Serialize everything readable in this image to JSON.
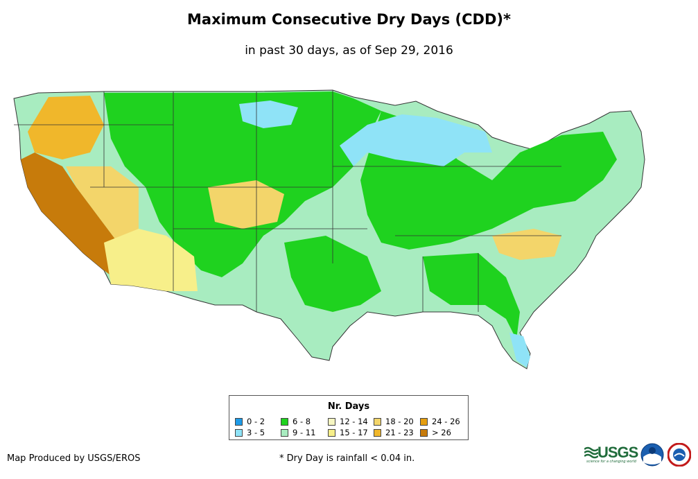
{
  "title": "Maximum Consecutive Dry Days (CDD)*",
  "subtitle": "in past 30 days, as of Sep 29, 2016",
  "legend": {
    "title": "Nr. Days",
    "items": [
      {
        "label": "0 - 2",
        "color": "#1e9be8"
      },
      {
        "label": "3 - 5",
        "color": "#8fe3f7"
      },
      {
        "label": "6 - 8",
        "color": "#1fd21f"
      },
      {
        "label": "9 - 11",
        "color": "#a8ecc0"
      },
      {
        "label": "12 - 14",
        "color": "#f6f6c2"
      },
      {
        "label": "15 - 17",
        "color": "#f7ef8a"
      },
      {
        "label": "18 - 20",
        "color": "#f3d56a"
      },
      {
        "label": "21 - 23",
        "color": "#f0b72b"
      },
      {
        "label": "24 - 26",
        "color": "#e59e10"
      },
      {
        "label": "> 26",
        "color": "#c77b0b"
      }
    ]
  },
  "credit": "Map Produced by USGS/EROS",
  "footnote": "* Dry Day is rainfall < 0.04 in.",
  "logos": {
    "usgs": "USGS",
    "usgs_tagline": "science for a changing world"
  }
}
